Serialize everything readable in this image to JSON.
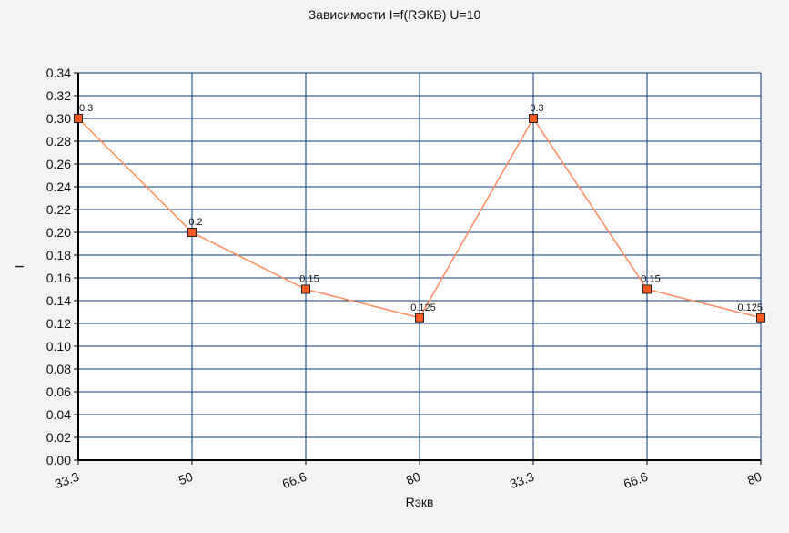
{
  "chart_data": {
    "type": "line",
    "title": "Зависимости I=f(RЭКВ) U=10",
    "xlabel": "Rэкв",
    "ylabel": "I",
    "categories": [
      "33.3",
      "50",
      "66.6",
      "80",
      "33.3",
      "66.6",
      "80"
    ],
    "series": [
      {
        "values": [
          0.3,
          0.2,
          0.15,
          0.125,
          0.3,
          0.15,
          0.125
        ],
        "data_labels": [
          "0.3",
          "0.2",
          "0.15",
          "0.125",
          "0.3",
          "0.15",
          "0.125"
        ]
      }
    ],
    "ylim": [
      0,
      0.34
    ],
    "ytick_step": 0.02,
    "grid": true,
    "legend": "none",
    "colors": {
      "line": "#ff8a5c",
      "marker_fill": "#ff5a1f",
      "grid": "#0b3a7a",
      "plot_bg": "#ffffff",
      "page_bg": "#f3f3f3"
    }
  }
}
